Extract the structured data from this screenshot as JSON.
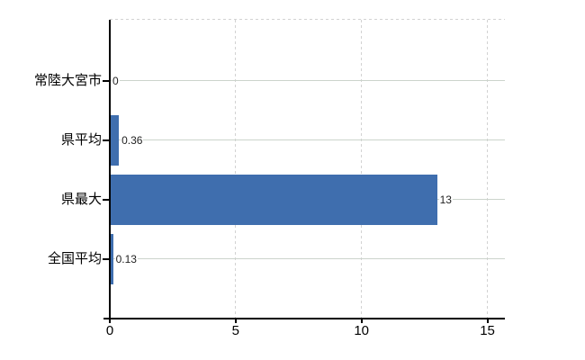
{
  "chart_data": {
    "type": "bar",
    "orientation": "horizontal",
    "title": "",
    "categories": [
      "常陸大宮市",
      "県平均",
      "県最大",
      "全国平均"
    ],
    "values": [
      0,
      0.36,
      13,
      0.13
    ],
    "value_labels": [
      "0",
      "0.36",
      "13",
      "0.13"
    ],
    "x_ticks": [
      0,
      5,
      10,
      15
    ],
    "x_tick_labels": [
      "0",
      "5",
      "10",
      "15"
    ],
    "xlim": [
      0,
      15.7
    ],
    "xlabel": "",
    "ylabel": "",
    "grid": true,
    "legend_position": "none",
    "bar_color": "#3f6eae",
    "vertical_gridline_color": "#d2d2d2",
    "horizontal_gridline_color": "#ccd4cc",
    "axis_color": "#000000",
    "background_color": "#ffffff"
  }
}
